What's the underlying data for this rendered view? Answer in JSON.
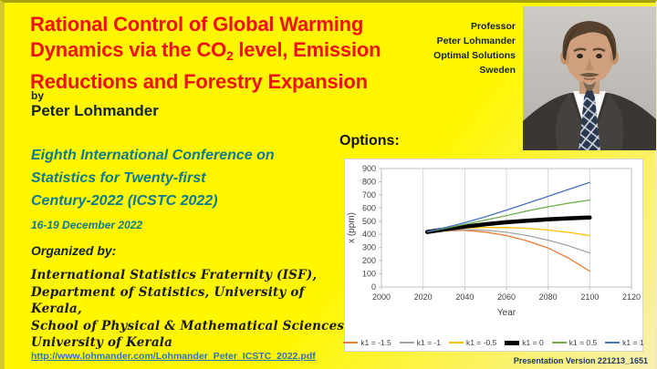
{
  "slide": {
    "title": {
      "line1": "Rational Control of Global Warming",
      "line2_before_sub": "Dynamics via the CO",
      "line2_sub": "2",
      "line2_after_sub": " level, Emission",
      "line3": "Reductions and Forestry Expansion"
    },
    "byline": {
      "by": "by",
      "author": "Peter Lohmander"
    },
    "affiliation": {
      "lines": [
        "Professor",
        "Peter Lohmander",
        "Optimal Solutions",
        "Sweden"
      ]
    },
    "conference": {
      "lines": [
        "Eighth International Conference on",
        "Statistics for Twenty-first",
        "Century-2022 (ICSTC 2022)"
      ],
      "dates": "16-19 December 2022"
    },
    "organizers": {
      "heading": "Organized by:",
      "lines": [
        "International Statistics Fraternity (ISF),",
        "Department of Statistics, University of Kerala,",
        "School of Physical & Mathematical Sciences,",
        "University of Kerala"
      ]
    },
    "link": "http://www.lohmander.com/Lohmander_Peter_ICSTC_2022.pdf",
    "options_label": "Options:",
    "version": "Presentation Version 221213_1651",
    "colors": {
      "title_red": "#ee1111",
      "conference_teal": "#0f7a8e",
      "link_blue": "#2e74b5",
      "version_navy": "#1f3864",
      "background_yellow": "#fff600"
    }
  },
  "chart_data": {
    "type": "line",
    "title": "",
    "xlabel": "Year",
    "ylabel": "x (ppm)",
    "xlim": [
      2000,
      2120
    ],
    "ylim": [
      0,
      900
    ],
    "xticks": [
      2000,
      2020,
      2040,
      2060,
      2080,
      2100,
      2120
    ],
    "yticks": [
      0,
      100,
      200,
      300,
      400,
      500,
      600,
      700,
      800,
      900
    ],
    "grid": "vertical",
    "legend_position": "bottom",
    "x": [
      2022,
      2030,
      2040,
      2050,
      2060,
      2070,
      2080,
      2090,
      2100
    ],
    "series": [
      {
        "name": "k1 = -1.5",
        "color": "#ED7D31",
        "width": 1.3,
        "values": [
          420,
          427,
          430,
          417,
          391,
          350,
          296,
          218,
          120
        ]
      },
      {
        "name": "k1 = -1",
        "color": "#A5A5A5",
        "width": 1.3,
        "values": [
          420,
          429,
          436,
          431,
          416,
          391,
          356,
          312,
          258
        ]
      },
      {
        "name": "k1 = -0.5",
        "color": "#FFC000",
        "width": 1.3,
        "values": [
          420,
          433,
          447,
          453,
          452,
          446,
          433,
          415,
          391
        ]
      },
      {
        "name": "k1 = 0",
        "color": "#000000",
        "width": 4.5,
        "values": [
          418,
          437,
          459,
          477,
          492,
          504,
          514,
          522,
          528
        ]
      },
      {
        "name": "k1 = 0.5",
        "color": "#70AD47",
        "width": 1.3,
        "values": [
          420,
          444,
          476,
          509,
          543,
          578,
          610,
          637,
          661
        ]
      },
      {
        "name": "k1 = 1",
        "color": "#4472C4",
        "width": 1.3,
        "values": [
          420,
          449,
          489,
          534,
          584,
          636,
          689,
          742,
          795
        ]
      }
    ]
  }
}
